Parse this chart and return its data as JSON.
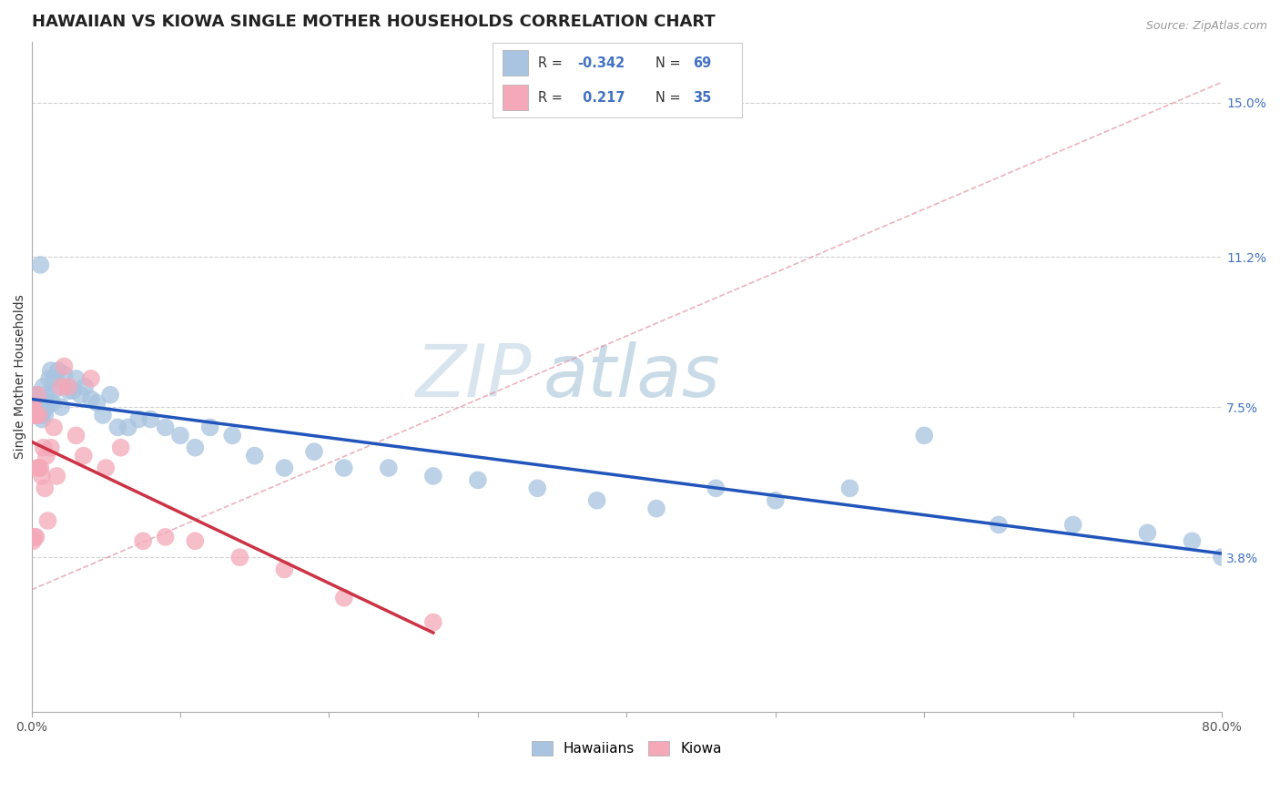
{
  "title": "HAWAIIAN VS KIOWA SINGLE MOTHER HOUSEHOLDS CORRELATION CHART",
  "source": "Source: ZipAtlas.com",
  "ylabel": "Single Mother Households",
  "xlim": [
    0.0,
    0.8
  ],
  "ylim": [
    0.0,
    0.165
  ],
  "x_ticks": [
    0.0,
    0.1,
    0.2,
    0.3,
    0.4,
    0.5,
    0.6,
    0.7,
    0.8
  ],
  "x_tick_labels": [
    "0.0%",
    "",
    "",
    "",
    "",
    "",
    "",
    "",
    "80.0%"
  ],
  "y_tick_labels_right": [
    "3.8%",
    "7.5%",
    "11.2%",
    "15.0%"
  ],
  "y_tick_positions_right": [
    0.038,
    0.075,
    0.112,
    0.15
  ],
  "hawaiian_R": -0.342,
  "hawaiian_N": 69,
  "kiowa_R": 0.217,
  "kiowa_N": 35,
  "hawaiian_color": "#a8c4e0",
  "kiowa_color": "#f4a8b8",
  "hawaiian_line_color": "#2255bb",
  "kiowa_line_color": "#cc3344",
  "trend_line_color": "#e08090",
  "background_color": "#ffffff",
  "grid_color": "#cccccc",
  "legend_R_color": "#4472c4",
  "watermark_color": "#ccd8e8",
  "hawaiian_x": [
    0.001,
    0.001,
    0.002,
    0.002,
    0.003,
    0.003,
    0.003,
    0.004,
    0.004,
    0.005,
    0.005,
    0.005,
    0.006,
    0.006,
    0.007,
    0.007,
    0.007,
    0.008,
    0.008,
    0.009,
    0.009,
    0.01,
    0.01,
    0.01,
    0.012,
    0.013,
    0.014,
    0.015,
    0.016,
    0.018,
    0.02,
    0.022,
    0.025,
    0.028,
    0.03,
    0.033,
    0.036,
    0.04,
    0.044,
    0.048,
    0.053,
    0.058,
    0.065,
    0.072,
    0.08,
    0.09,
    0.1,
    0.11,
    0.12,
    0.135,
    0.15,
    0.17,
    0.19,
    0.21,
    0.24,
    0.27,
    0.3,
    0.34,
    0.38,
    0.42,
    0.46,
    0.5,
    0.55,
    0.6,
    0.65,
    0.7,
    0.75,
    0.78,
    0.8
  ],
  "hawaiian_y": [
    0.078,
    0.075,
    0.076,
    0.074,
    0.077,
    0.075,
    0.073,
    0.078,
    0.074,
    0.075,
    0.077,
    0.073,
    0.11,
    0.073,
    0.076,
    0.074,
    0.072,
    0.08,
    0.074,
    0.076,
    0.073,
    0.078,
    0.076,
    0.075,
    0.082,
    0.084,
    0.076,
    0.079,
    0.082,
    0.084,
    0.075,
    0.083,
    0.079,
    0.079,
    0.082,
    0.078,
    0.08,
    0.077,
    0.076,
    0.073,
    0.078,
    0.07,
    0.07,
    0.072,
    0.072,
    0.07,
    0.068,
    0.065,
    0.07,
    0.068,
    0.063,
    0.06,
    0.064,
    0.06,
    0.06,
    0.058,
    0.057,
    0.055,
    0.052,
    0.05,
    0.055,
    0.052,
    0.055,
    0.068,
    0.046,
    0.046,
    0.044,
    0.042,
    0.038
  ],
  "kiowa_x": [
    0.001,
    0.001,
    0.001,
    0.002,
    0.002,
    0.003,
    0.003,
    0.004,
    0.004,
    0.005,
    0.005,
    0.006,
    0.007,
    0.008,
    0.009,
    0.01,
    0.011,
    0.013,
    0.015,
    0.017,
    0.02,
    0.022,
    0.025,
    0.03,
    0.035,
    0.04,
    0.05,
    0.06,
    0.075,
    0.09,
    0.11,
    0.14,
    0.17,
    0.21,
    0.27
  ],
  "kiowa_y": [
    0.075,
    0.075,
    0.042,
    0.073,
    0.043,
    0.073,
    0.043,
    0.078,
    0.06,
    0.073,
    0.06,
    0.06,
    0.058,
    0.065,
    0.055,
    0.063,
    0.047,
    0.065,
    0.07,
    0.058,
    0.08,
    0.085,
    0.08,
    0.068,
    0.063,
    0.082,
    0.06,
    0.065,
    0.042,
    0.043,
    0.042,
    0.038,
    0.035,
    0.028,
    0.022
  ],
  "watermark": "ZIPatlas",
  "title_fontsize": 13,
  "axis_label_fontsize": 10,
  "tick_fontsize": 10
}
